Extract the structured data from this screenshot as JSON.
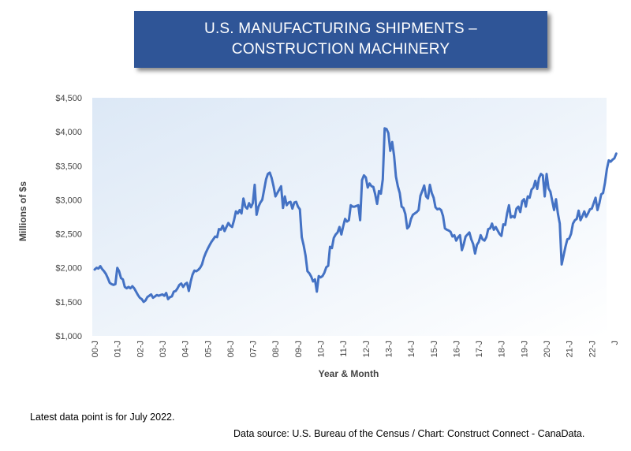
{
  "chart_data": {
    "type": "line",
    "title": [
      "U.S. MANUFACTURING SHIPMENTS –",
      "CONSTRUCTION MACHINERY"
    ],
    "xlabel": "Year & Month",
    "ylabel": "Millions of $s",
    "ylim": [
      1000,
      4500
    ],
    "y_ticks": [
      1000,
      1500,
      2000,
      2500,
      3000,
      3500,
      4000,
      4500
    ],
    "y_tick_labels": [
      "$1,000",
      "$1,500",
      "$2,000",
      "$2,500",
      "$3,000",
      "$3,500",
      "$4,000",
      "$4,500"
    ],
    "x_tick_labels": [
      "00-J",
      "01-J",
      "02-J",
      "03-J",
      "04-J",
      "05-J",
      "06-J",
      "07-J",
      "08-J",
      "09-J",
      "10-J",
      "11-J",
      "12-J",
      "13-J",
      "14-J",
      "15-J",
      "16-J",
      "17-J",
      "18-J",
      "19-J",
      "20-J",
      "21-J",
      "22-J",
      "J"
    ],
    "series_color": "#4472c4",
    "grid": false,
    "series": [
      {
        "values": [
          [
            0,
            1975
          ],
          [
            1,
            2000
          ],
          [
            2,
            1990
          ],
          [
            3,
            2025
          ],
          [
            4,
            1980
          ],
          [
            5,
            1950
          ],
          [
            6,
            1910
          ],
          [
            7,
            1850
          ],
          [
            8,
            1780
          ],
          [
            9,
            1760
          ],
          [
            10,
            1750
          ],
          [
            11,
            1760
          ],
          [
            12,
            2000
          ],
          [
            13,
            1950
          ],
          [
            14,
            1850
          ],
          [
            15,
            1830
          ],
          [
            16,
            1720
          ],
          [
            17,
            1700
          ],
          [
            18,
            1720
          ],
          [
            19,
            1700
          ],
          [
            20,
            1730
          ],
          [
            21,
            1700
          ],
          [
            22,
            1650
          ],
          [
            23,
            1600
          ],
          [
            24,
            1560
          ],
          [
            25,
            1540
          ],
          [
            26,
            1500
          ],
          [
            27,
            1520
          ],
          [
            28,
            1570
          ],
          [
            29,
            1590
          ],
          [
            30,
            1610
          ],
          [
            31,
            1560
          ],
          [
            32,
            1580
          ],
          [
            33,
            1600
          ],
          [
            34,
            1590
          ],
          [
            35,
            1600
          ],
          [
            36,
            1610
          ],
          [
            37,
            1590
          ],
          [
            38,
            1630
          ],
          [
            39,
            1540
          ],
          [
            40,
            1570
          ],
          [
            41,
            1580
          ],
          [
            42,
            1650
          ],
          [
            43,
            1660
          ],
          [
            44,
            1700
          ],
          [
            45,
            1750
          ],
          [
            46,
            1770
          ],
          [
            47,
            1720
          ],
          [
            48,
            1760
          ],
          [
            49,
            1780
          ],
          [
            50,
            1660
          ],
          [
            51,
            1800
          ],
          [
            52,
            1900
          ],
          [
            53,
            1960
          ],
          [
            54,
            1950
          ],
          [
            55,
            1970
          ],
          [
            56,
            2000
          ],
          [
            57,
            2050
          ],
          [
            58,
            2150
          ],
          [
            59,
            2220
          ],
          [
            60,
            2280
          ],
          [
            61,
            2330
          ],
          [
            62,
            2380
          ],
          [
            63,
            2420
          ],
          [
            64,
            2460
          ],
          [
            65,
            2450
          ],
          [
            66,
            2570
          ],
          [
            67,
            2560
          ],
          [
            68,
            2620
          ],
          [
            69,
            2540
          ],
          [
            70,
            2600
          ],
          [
            71,
            2660
          ],
          [
            72,
            2620
          ],
          [
            73,
            2600
          ],
          [
            74,
            2700
          ],
          [
            75,
            2830
          ],
          [
            76,
            2800
          ],
          [
            77,
            2850
          ],
          [
            78,
            2800
          ],
          [
            79,
            3020
          ],
          [
            80,
            2900
          ],
          [
            81,
            2870
          ],
          [
            82,
            2950
          ],
          [
            83,
            2890
          ],
          [
            84,
            2950
          ],
          [
            85,
            3220
          ],
          [
            86,
            2780
          ],
          [
            87,
            2900
          ],
          [
            88,
            2960
          ],
          [
            89,
            3000
          ],
          [
            90,
            3150
          ],
          [
            91,
            3300
          ],
          [
            92,
            3380
          ],
          [
            93,
            3400
          ],
          [
            94,
            3320
          ],
          [
            95,
            3200
          ],
          [
            96,
            3050
          ],
          [
            97,
            3100
          ],
          [
            98,
            3150
          ],
          [
            99,
            3200
          ],
          [
            100,
            2880
          ],
          [
            101,
            3050
          ],
          [
            102,
            2920
          ],
          [
            103,
            2960
          ],
          [
            104,
            2970
          ],
          [
            105,
            2870
          ],
          [
            106,
            2960
          ],
          [
            107,
            2970
          ],
          [
            108,
            2900
          ],
          [
            109,
            2860
          ],
          [
            110,
            2450
          ],
          [
            111,
            2330
          ],
          [
            112,
            2180
          ],
          [
            113,
            1950
          ],
          [
            114,
            1920
          ],
          [
            115,
            1870
          ],
          [
            116,
            1800
          ],
          [
            117,
            1830
          ],
          [
            118,
            1650
          ],
          [
            119,
            1880
          ],
          [
            120,
            1860
          ],
          [
            121,
            1880
          ],
          [
            122,
            1930
          ],
          [
            123,
            2010
          ],
          [
            124,
            2030
          ],
          [
            125,
            2310
          ],
          [
            126,
            2290
          ],
          [
            127,
            2440
          ],
          [
            128,
            2490
          ],
          [
            129,
            2520
          ],
          [
            130,
            2600
          ],
          [
            131,
            2490
          ],
          [
            132,
            2610
          ],
          [
            133,
            2720
          ],
          [
            134,
            2680
          ],
          [
            135,
            2700
          ],
          [
            136,
            2920
          ],
          [
            137,
            2900
          ],
          [
            138,
            2900
          ],
          [
            139,
            2910
          ],
          [
            140,
            2920
          ],
          [
            141,
            2700
          ],
          [
            142,
            3290
          ],
          [
            143,
            3360
          ],
          [
            144,
            3330
          ],
          [
            145,
            3180
          ],
          [
            146,
            3240
          ],
          [
            147,
            3200
          ],
          [
            148,
            3190
          ],
          [
            149,
            3080
          ],
          [
            150,
            2940
          ],
          [
            151,
            3130
          ],
          [
            152,
            3090
          ],
          [
            153,
            3300
          ],
          [
            154,
            4050
          ],
          [
            155,
            4040
          ],
          [
            156,
            3980
          ],
          [
            157,
            3720
          ],
          [
            158,
            3850
          ],
          [
            159,
            3650
          ],
          [
            160,
            3340
          ],
          [
            161,
            3200
          ],
          [
            162,
            3100
          ],
          [
            163,
            2900
          ],
          [
            164,
            2880
          ],
          [
            165,
            2790
          ],
          [
            166,
            2580
          ],
          [
            167,
            2610
          ],
          [
            168,
            2720
          ],
          [
            169,
            2780
          ],
          [
            170,
            2800
          ],
          [
            171,
            2820
          ],
          [
            172,
            2850
          ],
          [
            173,
            3060
          ],
          [
            174,
            3130
          ],
          [
            175,
            3210
          ],
          [
            176,
            3050
          ],
          [
            177,
            3020
          ],
          [
            178,
            3220
          ],
          [
            179,
            3100
          ],
          [
            180,
            3030
          ],
          [
            181,
            2890
          ],
          [
            182,
            2860
          ],
          [
            183,
            2870
          ],
          [
            184,
            2850
          ],
          [
            185,
            2760
          ],
          [
            186,
            2580
          ],
          [
            187,
            2560
          ],
          [
            188,
            2550
          ],
          [
            189,
            2530
          ],
          [
            190,
            2460
          ],
          [
            191,
            2480
          ],
          [
            192,
            2400
          ],
          [
            193,
            2450
          ],
          [
            194,
            2480
          ],
          [
            195,
            2260
          ],
          [
            196,
            2350
          ],
          [
            197,
            2460
          ],
          [
            198,
            2490
          ],
          [
            199,
            2520
          ],
          [
            200,
            2420
          ],
          [
            201,
            2350
          ],
          [
            202,
            2210
          ],
          [
            203,
            2340
          ],
          [
            204,
            2380
          ],
          [
            205,
            2480
          ],
          [
            206,
            2420
          ],
          [
            207,
            2400
          ],
          [
            208,
            2450
          ],
          [
            209,
            2570
          ],
          [
            210,
            2580
          ],
          [
            211,
            2650
          ],
          [
            212,
            2560
          ],
          [
            213,
            2600
          ],
          [
            214,
            2550
          ],
          [
            215,
            2500
          ],
          [
            216,
            2470
          ],
          [
            217,
            2640
          ],
          [
            218,
            2630
          ],
          [
            219,
            2800
          ],
          [
            220,
            2920
          ],
          [
            221,
            2740
          ],
          [
            222,
            2760
          ],
          [
            223,
            2740
          ],
          [
            224,
            2870
          ],
          [
            225,
            2900
          ],
          [
            226,
            2820
          ],
          [
            227,
            2980
          ],
          [
            228,
            3010
          ],
          [
            229,
            2900
          ],
          [
            230,
            3050
          ],
          [
            231,
            3030
          ],
          [
            232,
            3150
          ],
          [
            233,
            3180
          ],
          [
            234,
            3280
          ],
          [
            235,
            3160
          ],
          [
            236,
            3320
          ],
          [
            237,
            3380
          ],
          [
            238,
            3360
          ],
          [
            239,
            3050
          ],
          [
            240,
            3380
          ],
          [
            241,
            3170
          ],
          [
            242,
            3120
          ],
          [
            243,
            2980
          ],
          [
            244,
            2850
          ],
          [
            245,
            3010
          ],
          [
            246,
            2800
          ],
          [
            247,
            2650
          ],
          [
            248,
            2050
          ],
          [
            249,
            2180
          ],
          [
            250,
            2310
          ],
          [
            251,
            2420
          ],
          [
            252,
            2430
          ],
          [
            253,
            2500
          ],
          [
            254,
            2650
          ],
          [
            255,
            2700
          ],
          [
            256,
            2720
          ],
          [
            257,
            2840
          ],
          [
            258,
            2700
          ],
          [
            259,
            2760
          ],
          [
            260,
            2830
          ],
          [
            261,
            2750
          ],
          [
            262,
            2800
          ],
          [
            263,
            2860
          ],
          [
            264,
            2870
          ],
          [
            265,
            2950
          ],
          [
            266,
            3030
          ],
          [
            267,
            2850
          ],
          [
            268,
            2950
          ],
          [
            269,
            3080
          ],
          [
            270,
            3100
          ],
          [
            271,
            3250
          ],
          [
            272,
            3450
          ],
          [
            273,
            3580
          ],
          [
            274,
            3560
          ],
          [
            275,
            3590
          ],
          [
            276,
            3610
          ],
          [
            277,
            3680
          ]
        ]
      }
    ]
  },
  "notes": {
    "latest": "Latest data point is for July 2022.",
    "source": "Data source: U.S. Bureau of the Census / Chart: Construct Connect - CanaData."
  }
}
